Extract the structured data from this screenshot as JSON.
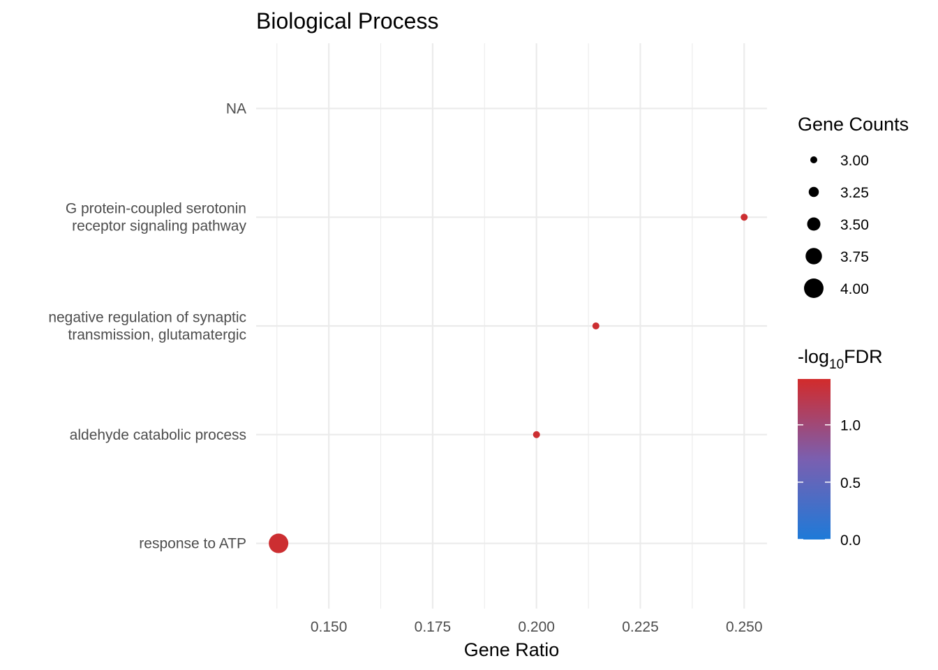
{
  "chart_data": {
    "type": "scatter",
    "title": "Biological Process",
    "xlabel": "Gene Ratio",
    "ylabel": "",
    "xlim": [
      0.1325,
      0.2555
    ],
    "xticks": [
      0.15,
      0.175,
      0.2,
      0.225,
      0.25
    ],
    "xtick_labels": [
      "0.150",
      "0.175",
      "0.200",
      "0.225",
      "0.250"
    ],
    "categories": [
      "NA",
      "G protein-coupled serotonin\nreceptor signaling pathway",
      "negative regulation of synaptic\ntransmission, glutamatergic",
      "aldehyde catabolic process",
      "response to ATP"
    ],
    "points": [
      {
        "category": "G protein-coupled serotonin\nreceptor signaling pathway",
        "gene_ratio": 0.25,
        "gene_count": 3,
        "neg_log10_fdr": 1.35
      },
      {
        "category": "negative regulation of synaptic\ntransmission, glutamatergic",
        "gene_ratio": 0.2143,
        "gene_count": 3,
        "neg_log10_fdr": 1.35
      },
      {
        "category": "aldehyde catabolic process",
        "gene_ratio": 0.2,
        "gene_count": 3,
        "neg_log10_fdr": 1.35
      },
      {
        "category": "response to ATP",
        "gene_ratio": 0.1379,
        "gene_count": 4,
        "neg_log10_fdr": 1.35
      }
    ],
    "size_legend": {
      "title": "Gene Counts",
      "breaks": [
        3.0,
        3.25,
        3.5,
        3.75,
        4.0
      ],
      "labels": [
        "3.00",
        "3.25",
        "3.50",
        "3.75",
        "4.00"
      ]
    },
    "color_legend": {
      "title_prefix": "-log",
      "title_subscript": "10",
      "title_suffix": "FDR",
      "range": [
        0,
        1.4
      ],
      "breaks": [
        0.0,
        0.5,
        1.0
      ],
      "labels": [
        "0.0",
        "0.5",
        "1.0"
      ],
      "low_color": "#1e7ad8",
      "high_color": "#d22b2b"
    },
    "grid": true,
    "legend_position": "right"
  }
}
